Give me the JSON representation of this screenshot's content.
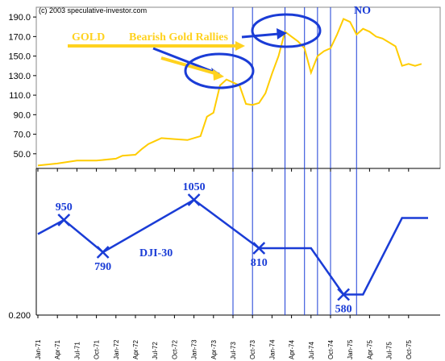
{
  "header": {
    "copyright": "(c) 2003 speculative-investor.com"
  },
  "chart_data": {
    "type": "line",
    "x_tick_labels": [
      "Jan-71",
      "Apr-71",
      "Jul-71",
      "Oct-71",
      "Jan-72",
      "Apr-72",
      "Jul-72",
      "Oct-72",
      "Jan-73",
      "Apr-73",
      "Jul-73",
      "Oct-73",
      "Jan-74",
      "Apr-74",
      "Jul-74",
      "Oct-74",
      "Jan-75",
      "Apr-75",
      "Jul-75",
      "Oct-75"
    ],
    "upper_panel": {
      "y_tick_labels": [
        "190.0",
        "170.0",
        "150.0",
        "130.0",
        "110.0",
        "90.0",
        "70.0",
        "50.0"
      ],
      "ylim": [
        35,
        200
      ],
      "color": "#ffcc00",
      "series": [
        {
          "x": [
            "1971-01",
            "1971-04",
            "1971-07",
            "1971-10",
            "1972-01",
            "1972-02",
            "1972-04",
            "1972-05",
            "1972-06",
            "1972-07",
            "1972-08",
            "1972-10",
            "1972-12",
            "1973-02",
            "1973-03",
            "1973-04",
            "1973-05",
            "1973-06",
            "1973-07",
            "1973-08",
            "1973-09",
            "1973-10",
            "1973-11",
            "1973-12",
            "1974-01",
            "1974-02",
            "1974-03",
            "1974-04",
            "1974-05",
            "1974-06",
            "1974-07",
            "1974-08",
            "1974-09",
            "1974-10",
            "1974-11",
            "1974-12",
            "1975-01",
            "1975-02",
            "1975-03",
            "1975-04",
            "1975-05",
            "1975-06",
            "1975-07",
            "1975-08",
            "1975-09",
            "1975-10",
            "1975-11",
            "1975-12"
          ],
          "y": [
            38,
            40,
            43,
            43,
            45,
            48,
            49,
            55,
            60,
            63,
            66,
            65,
            64,
            68,
            88,
            92,
            120,
            126,
            123,
            120,
            101,
            100,
            102,
            112,
            132,
            150,
            175,
            170,
            165,
            158,
            133,
            150,
            155,
            158,
            172,
            188,
            185,
            172,
            178,
            175,
            170,
            168,
            164,
            160,
            140,
            142,
            140,
            142
          ]
        }
      ]
    },
    "lower_panel": {
      "y_tick_labels": [
        "0.200"
      ],
      "color": "#1a3cd6",
      "dji_label": "DJI-30",
      "points": [
        {
          "x": "1971-01",
          "y": 880
        },
        {
          "x": "1971-05",
          "y": 950,
          "label": "950"
        },
        {
          "x": "1971-11",
          "y": 790,
          "label": "790"
        },
        {
          "x": "1973-01",
          "y": 1050,
          "label": "1050"
        },
        {
          "x": "1973-11",
          "y": 810,
          "label": "810"
        },
        {
          "x": "1974-07",
          "y": 810
        },
        {
          "x": "1974-12",
          "y": 580,
          "label": "580"
        },
        {
          "x": "1975-03",
          "y": 580
        },
        {
          "x": "1975-09",
          "y": 960
        },
        {
          "x": "1976-01",
          "y": 960
        }
      ]
    },
    "annotations": {
      "gold": "GOLD",
      "bearish": "Bearish Gold Rallies",
      "no": "NO",
      "vertical_lines": [
        "1973-07",
        "1973-10",
        "1974-03",
        "1974-06",
        "1974-08",
        "1974-10",
        "1975-02"
      ]
    }
  }
}
